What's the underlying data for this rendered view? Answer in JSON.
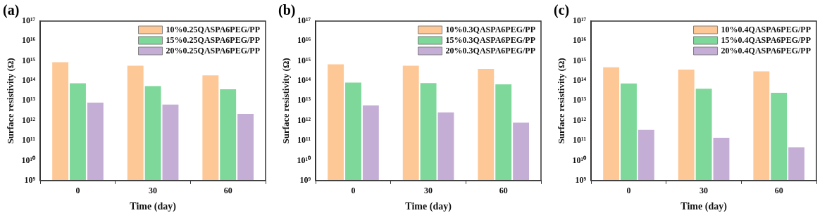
{
  "chart_data": [
    {
      "type": "bar",
      "title": "(a)",
      "xlabel": "Time (day)",
      "ylabel": "Surface resistivity (Ω)",
      "categories": [
        "0",
        "30",
        "60"
      ],
      "log": true,
      "ylim": [
        1000000000.0,
        1e+17
      ],
      "yticks": [
        {
          "value": 1000000000.0,
          "label": "10⁹"
        },
        {
          "value": 10000000000.0,
          "label": "10¹⁰"
        },
        {
          "value": 100000000000.0,
          "label": "10¹¹"
        },
        {
          "value": 1000000000000.0,
          "label": "10¹²"
        },
        {
          "value": 10000000000000.0,
          "label": "10¹³"
        },
        {
          "value": 100000000000000.0,
          "label": "10¹⁴"
        },
        {
          "value": 1000000000000000.0,
          "label": "10¹⁵"
        },
        {
          "value": 1e+16,
          "label": "10¹⁶"
        },
        {
          "value": 1e+17,
          "label": "10¹⁷"
        }
      ],
      "legend": "top right",
      "grid": false,
      "series": [
        {
          "name": "10%0.25QASPA6PEG/PP",
          "color": "#fdc896",
          "values": [
            870000000000000.0,
            570000000000000.0,
            190000000000000.0
          ]
        },
        {
          "name": "15%0.25QASPA6PEG/PP",
          "color": "#7dd89a",
          "values": [
            75000000000000.0,
            55000000000000.0,
            38000000000000.0
          ]
        },
        {
          "name": "20%0.25QASPA6PEG/PP",
          "color": "#c5aed6",
          "values": [
            8100000000000.0,
            6500000000000.0,
            2200000000000.0
          ]
        }
      ]
    },
    {
      "type": "bar",
      "title": "(b)",
      "xlabel": "Time (day)",
      "ylabel": "Surface resistivity (Ω)",
      "categories": [
        "0",
        "30",
        "60"
      ],
      "log": true,
      "ylim": [
        1000000000.0,
        1e+17
      ],
      "yticks": [
        {
          "value": 1000000000.0,
          "label": "10⁹"
        },
        {
          "value": 10000000000.0,
          "label": "10¹⁰"
        },
        {
          "value": 100000000000.0,
          "label": "10¹¹"
        },
        {
          "value": 1000000000000.0,
          "label": "10¹²"
        },
        {
          "value": 10000000000000.0,
          "label": "10¹³"
        },
        {
          "value": 100000000000000.0,
          "label": "10¹⁴"
        },
        {
          "value": 1000000000000000.0,
          "label": "10¹⁵"
        },
        {
          "value": 1e+16,
          "label": "10¹⁶"
        },
        {
          "value": 1e+17,
          "label": "10¹⁷"
        }
      ],
      "legend": "top right",
      "grid": false,
      "series": [
        {
          "name": "10%0.3QASPA6PEG/PP",
          "color": "#fdc896",
          "values": [
            680000000000000.0,
            570000000000000.0,
            400000000000000.0
          ]
        },
        {
          "name": "15%0.3QASPA6PEG/PP",
          "color": "#7dd89a",
          "values": [
            82000000000000.0,
            77000000000000.0,
            67000000000000.0
          ]
        },
        {
          "name": "20%0.3QASPA6PEG/PP",
          "color": "#c5aed6",
          "values": [
            5900000000000.0,
            2600000000000.0,
            800000000000.0
          ]
        }
      ]
    },
    {
      "type": "bar",
      "title": "(c)",
      "xlabel": "Time (day)",
      "ylabel": "Surface resistivity (Ω)",
      "categories": [
        "0",
        "30",
        "60"
      ],
      "log": true,
      "ylim": [
        1000000000.0,
        1e+17
      ],
      "yticks": [
        {
          "value": 1000000000.0,
          "label": "10⁹"
        },
        {
          "value": 10000000000.0,
          "label": "10¹⁰"
        },
        {
          "value": 100000000000.0,
          "label": "10¹¹"
        },
        {
          "value": 1000000000000.0,
          "label": "10¹²"
        },
        {
          "value": 10000000000000.0,
          "label": "10¹³"
        },
        {
          "value": 100000000000000.0,
          "label": "10¹⁴"
        },
        {
          "value": 1000000000000000.0,
          "label": "10¹⁵"
        },
        {
          "value": 1e+16,
          "label": "10¹⁶"
        },
        {
          "value": 1e+17,
          "label": "10¹⁷"
        }
      ],
      "legend": "top right",
      "grid": false,
      "series": [
        {
          "name": "10%0.4QASPA6PEG/PP",
          "color": "#fdc896",
          "values": [
            480000000000000.0,
            370000000000000.0,
            300000000000000.0
          ]
        },
        {
          "name": "15%0.4QASPA6PEG/PP",
          "color": "#7dd89a",
          "values": [
            74000000000000.0,
            40000000000000.0,
            25000000000000.0
          ]
        },
        {
          "name": "20%0.4QASPA6PEG/PP",
          "color": "#c5aed6",
          "values": [
            350000000000.0,
            140000000000.0,
            47000000000.0
          ]
        }
      ]
    }
  ]
}
